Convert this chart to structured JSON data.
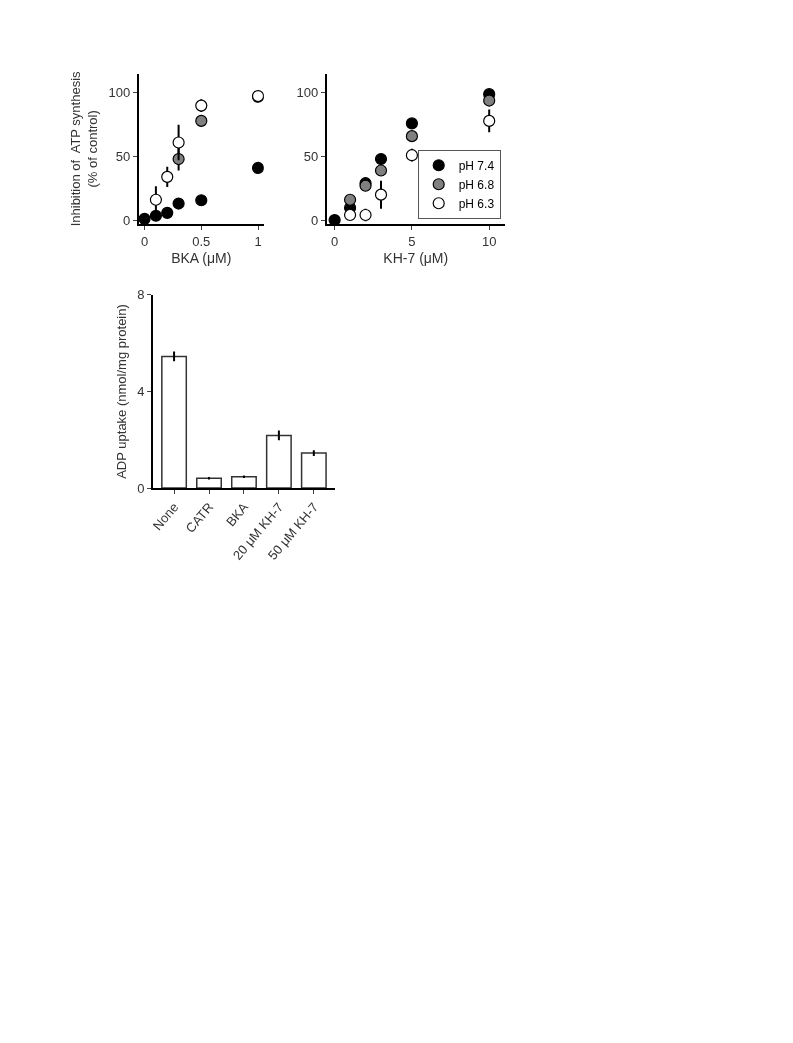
{
  "chart_data": [
    {
      "type": "scatter",
      "xlabel": "BKA (μM)",
      "ylabel": "Inhibition of  ATP synthesis\n(% of control)",
      "x": [
        0,
        0.1,
        0.2,
        0.3,
        0.5,
        1
      ],
      "xlim": [
        -0.05,
        1.05
      ],
      "xticks": [
        0,
        0.5,
        1
      ],
      "ylim": [
        -3,
        115
      ],
      "yticks": [
        0,
        50,
        100
      ],
      "marker": "circle",
      "series": [
        {
          "color": "#000000",
          "values": [
            1,
            3.4,
            5.7,
            13,
            15.6,
            41
          ],
          "errors": [
            null,
            null,
            null,
            3,
            3,
            3
          ]
        },
        {
          "color": "#808080",
          "values": [
            null,
            null,
            null,
            48,
            78,
            97
          ],
          "errors": [
            null,
            null,
            null,
            9,
            4,
            null
          ]
        },
        {
          "color": "#ffffff",
          "values": [
            null,
            16,
            34,
            61,
            90,
            97.5
          ],
          "errors": [
            null,
            10.7,
            8,
            14,
            5,
            2
          ]
        }
      ]
    },
    {
      "type": "scatter",
      "xlabel": "KH-7 (μM)",
      "x": [
        0,
        1,
        2,
        3,
        5,
        10
      ],
      "xlim": [
        -0.5,
        11
      ],
      "xticks": [
        0,
        5,
        10
      ],
      "ylim": [
        -3,
        115
      ],
      "yticks": [
        0,
        50,
        100
      ],
      "marker": "circle",
      "legend": "bottom right",
      "series": [
        {
          "name": "pH 7.4",
          "color": "#000000",
          "values": [
            0,
            9.6,
            29,
            48,
            76,
            99
          ],
          "errors": [
            null,
            null,
            3,
            3,
            null,
            null
          ]
        },
        {
          "name": "pH 6.8",
          "color": "#808080",
          "values": [
            null,
            16,
            27,
            39,
            66,
            94
          ],
          "errors": [
            null,
            null,
            null,
            null,
            null,
            null
          ]
        },
        {
          "name": "pH 6.3",
          "color": "#ffffff",
          "values": [
            null,
            4,
            4,
            20,
            51,
            78
          ],
          "errors": [
            null,
            null,
            5,
            11,
            5,
            9
          ]
        }
      ]
    },
    {
      "type": "bar",
      "ylabel": "ADP uptake (nmol/mg protein)",
      "categories": [
        "None",
        "CATR",
        "BKA",
        "20 μM KH-7",
        "50 μM KH-7"
      ],
      "values": [
        5.45,
        0.41,
        0.47,
        2.18,
        1.45
      ],
      "errors": [
        0.2,
        0.05,
        0.05,
        0.2,
        0.12
      ],
      "color": "#ffffff",
      "ylim": [
        0,
        8
      ],
      "yticks": [
        0,
        4,
        8
      ]
    }
  ]
}
